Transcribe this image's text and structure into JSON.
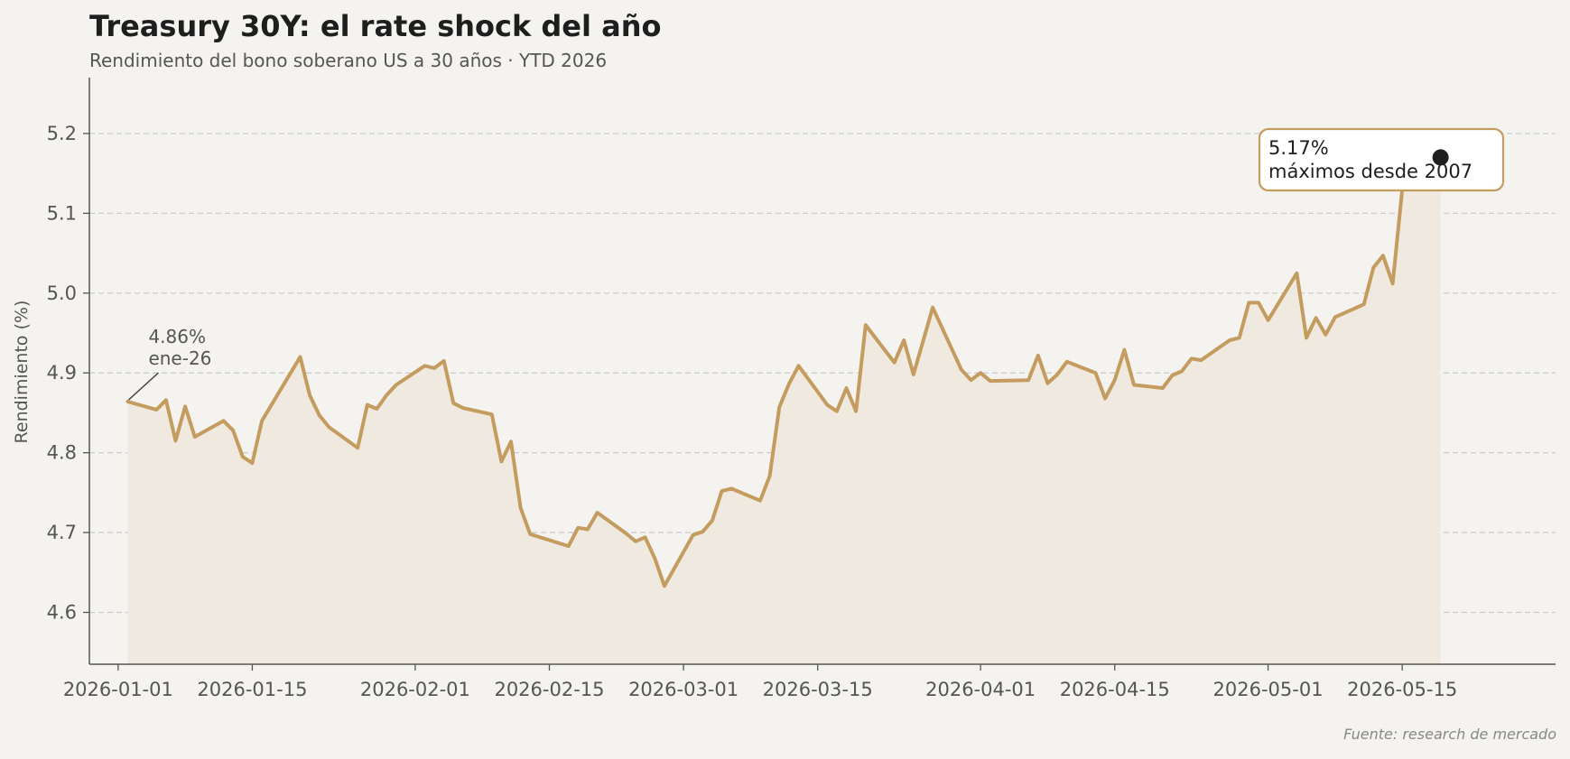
{
  "chart_data": {
    "type": "line",
    "title": "Treasury 30Y: el rate shock del año",
    "subtitle": "Rendimiento del bono soberano US a 30 años · YTD 2026",
    "ylabel": "Rendimiento (%)",
    "xlabel": "",
    "source": "Fuente: research de mercado",
    "ylim": [
      4.535,
      5.27
    ],
    "xlim": [
      "2025-12-29",
      "2026-05-31"
    ],
    "x_ticks": [
      "2026-01-01",
      "2026-01-15",
      "2026-02-01",
      "2026-02-15",
      "2026-03-01",
      "2026-03-15",
      "2026-04-01",
      "2026-04-15",
      "2026-05-01",
      "2026-05-15"
    ],
    "y_ticks": [
      4.6,
      4.7,
      4.8,
      4.9,
      5.0,
      5.1,
      5.2
    ],
    "y_tick_labels": [
      "4.6",
      "4.7",
      "4.8",
      "4.9",
      "5.0",
      "5.1",
      "5.2"
    ],
    "grid": "y-dashed",
    "fill_under_line": true,
    "colors": {
      "line": "#c49c60",
      "fill": "#efe9df",
      "grid": "#cccccc",
      "axis": "#555555",
      "marker": "#1e1e1e",
      "background": "#f5f3ef"
    },
    "series": [
      {
        "x": [
          "2026-01-02",
          "2026-01-05",
          "2026-01-06",
          "2026-01-07",
          "2026-01-08",
          "2026-01-09",
          "2026-01-12",
          "2026-01-13",
          "2026-01-14",
          "2026-01-15",
          "2026-01-16",
          "2026-01-20",
          "2026-01-21",
          "2026-01-22",
          "2026-01-23",
          "2026-01-26",
          "2026-01-27",
          "2026-01-28",
          "2026-01-29",
          "2026-01-30",
          "2026-02-02",
          "2026-02-03",
          "2026-02-04",
          "2026-02-05",
          "2026-02-06",
          "2026-02-09",
          "2026-02-10",
          "2026-02-11",
          "2026-02-12",
          "2026-02-13",
          "2026-02-17",
          "2026-02-18",
          "2026-02-19",
          "2026-02-20",
          "2026-02-23",
          "2026-02-24",
          "2026-02-25",
          "2026-02-26",
          "2026-02-27",
          "2026-03-02",
          "2026-03-03",
          "2026-03-04",
          "2026-03-05",
          "2026-03-06",
          "2026-03-09",
          "2026-03-10",
          "2026-03-11",
          "2026-03-12",
          "2026-03-13",
          "2026-03-16",
          "2026-03-17",
          "2026-03-18",
          "2026-03-19",
          "2026-03-20",
          "2026-03-23",
          "2026-03-24",
          "2026-03-25",
          "2026-03-26",
          "2026-03-27",
          "2026-03-30",
          "2026-03-31",
          "2026-04-01",
          "2026-04-02",
          "2026-04-06",
          "2026-04-07",
          "2026-04-08",
          "2026-04-09",
          "2026-04-10",
          "2026-04-13",
          "2026-04-14",
          "2026-04-15",
          "2026-04-16",
          "2026-04-17",
          "2026-04-20",
          "2026-04-21",
          "2026-04-22",
          "2026-04-23",
          "2026-04-24",
          "2026-04-27",
          "2026-04-28",
          "2026-04-29",
          "2026-04-30",
          "2026-05-01",
          "2026-05-04",
          "2026-05-05",
          "2026-05-06",
          "2026-05-07",
          "2026-05-08",
          "2026-05-11",
          "2026-05-12",
          "2026-05-13",
          "2026-05-14",
          "2026-05-15",
          "2026-05-19"
        ],
        "values": [
          4.864,
          4.854,
          4.866,
          4.815,
          4.858,
          4.82,
          4.84,
          4.828,
          4.795,
          4.787,
          4.84,
          4.92,
          4.872,
          4.847,
          4.832,
          4.806,
          4.86,
          4.855,
          4.872,
          4.885,
          4.909,
          4.906,
          4.915,
          4.862,
          4.856,
          4.848,
          4.789,
          4.814,
          4.731,
          4.698,
          4.683,
          4.706,
          4.704,
          4.725,
          4.699,
          4.689,
          4.694,
          4.668,
          4.633,
          4.697,
          4.701,
          4.715,
          4.752,
          4.755,
          4.74,
          4.771,
          4.857,
          4.886,
          4.909,
          4.86,
          4.852,
          4.881,
          4.852,
          4.96,
          4.913,
          4.941,
          4.898,
          4.94,
          4.982,
          4.904,
          4.891,
          4.9,
          4.89,
          4.891,
          4.922,
          4.887,
          4.898,
          4.914,
          4.9,
          4.868,
          4.891,
          4.929,
          4.885,
          4.881,
          4.897,
          4.902,
          4.918,
          4.916,
          4.941,
          4.944,
          4.988,
          4.988,
          4.966,
          5.025,
          4.944,
          4.969,
          4.948,
          4.97,
          4.986,
          5.032,
          5.047,
          5.012,
          5.13,
          5.17
        ]
      }
    ],
    "annotations": [
      {
        "date": "2026-01-02",
        "value": 4.864,
        "text_lines": [
          "4.86%",
          "ene-26"
        ]
      },
      {
        "date": "2026-05-19",
        "value": 5.17,
        "text_lines": [
          "5.17%",
          "máximos desde 2007"
        ]
      }
    ]
  }
}
